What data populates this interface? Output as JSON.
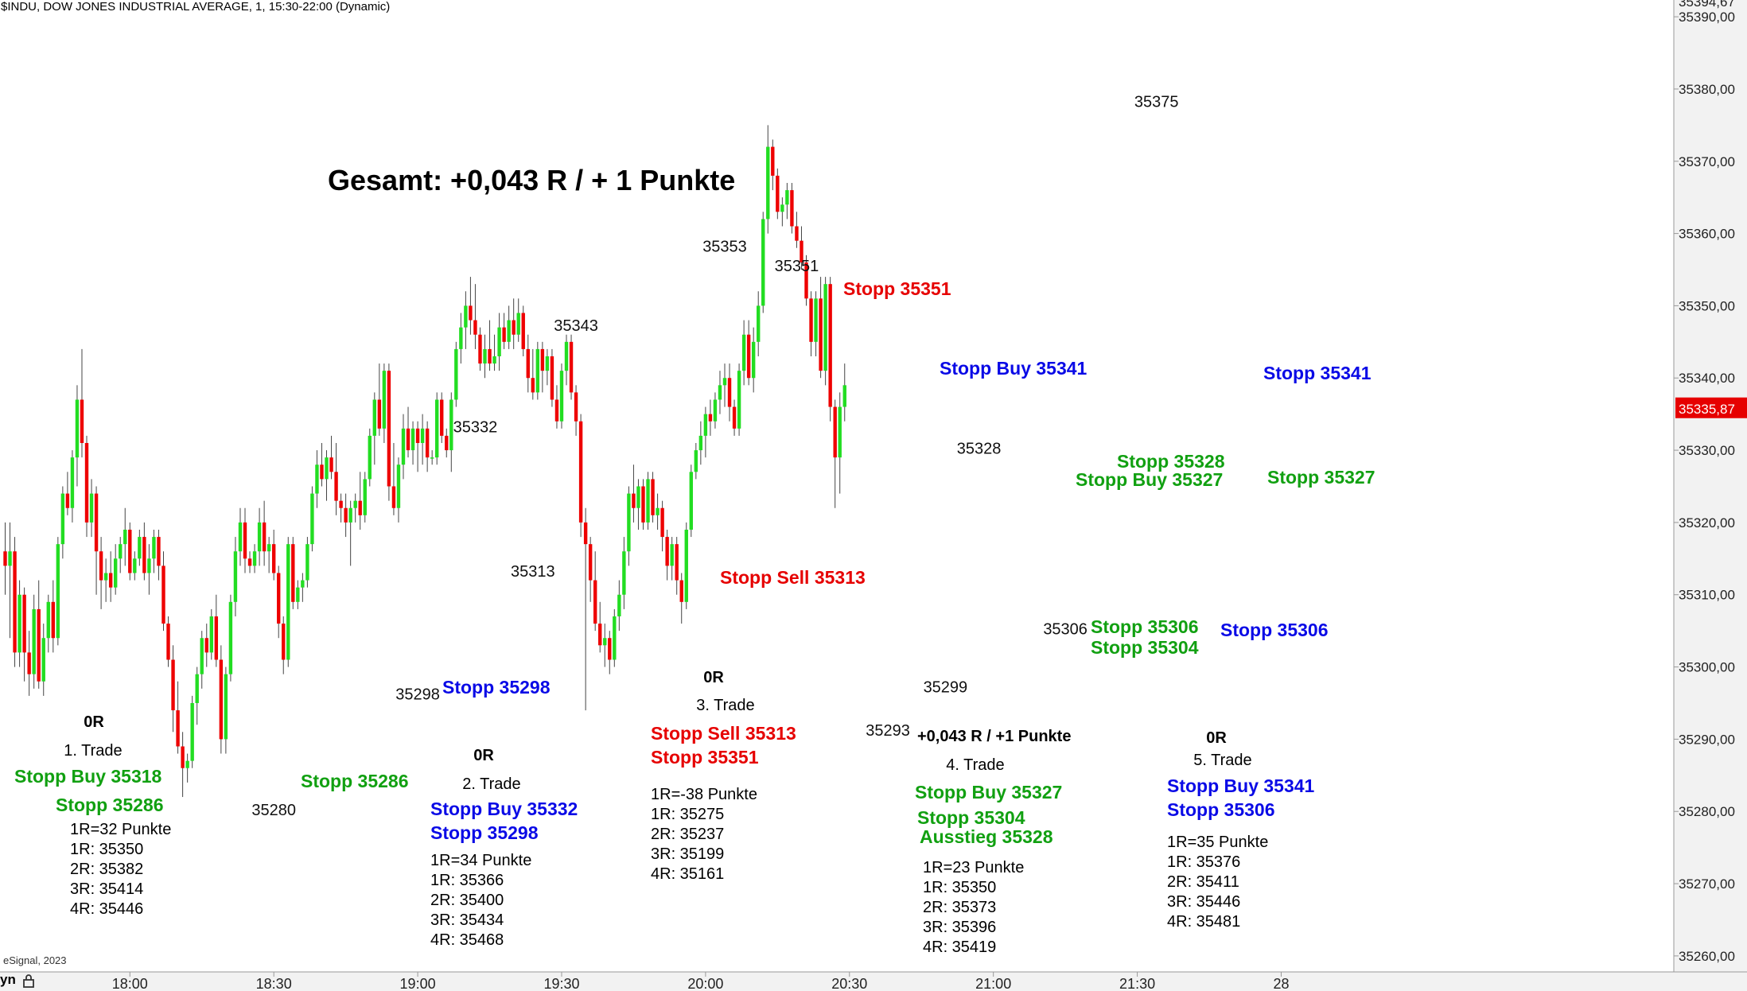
{
  "header": {
    "title": "$INDU, DOW JONES INDUSTRIAL AVERAGE, 1, 15:30-22:00 (Dynamic)"
  },
  "footer": {
    "credit": "eSignal, 2023",
    "mode_label": "yn"
  },
  "icons": {
    "lock": "lock-icon"
  },
  "colors": {
    "up": "#22dd22",
    "down": "#ee0000",
    "wick": "#444444",
    "green_label": "#11a011",
    "blue_label": "#0a0ae6",
    "red_label": "#e60000",
    "price_tag": "#e60000",
    "axis_bg": "#f2f2f2"
  },
  "chart_data": {
    "type": "candlestick",
    "title": "Gesamt: +0,043 R / + 1 Punkte",
    "ylim": [
      35256,
      35396
    ],
    "y_ticks": [
      35260,
      35270,
      35280,
      35290,
      35300,
      35310,
      35320,
      35330,
      35340,
      35350,
      35360,
      35370,
      35380,
      35390
    ],
    "y_tick_labels": [
      "35260,00",
      "35270,00",
      "35280,00",
      "35290,00",
      "35300,00",
      "35310,00",
      "35320,00",
      "35330,00",
      "35340,00",
      "35350,00",
      "35360,00",
      "35370,00",
      "35380,00",
      "35390,00"
    ],
    "y_top_partial_label": "35394,67",
    "current_price": 35335.87,
    "current_price_label": "35335,87",
    "x_ticks": [
      {
        "label": "18:00",
        "bar": 26
      },
      {
        "label": "18:30",
        "bar": 56
      },
      {
        "label": "19:00",
        "bar": 86
      },
      {
        "label": "19:30",
        "bar": 116
      },
      {
        "label": "20:00",
        "bar": 146
      },
      {
        "label": "20:30",
        "bar": 176
      },
      {
        "label": "21:00",
        "bar": 206
      },
      {
        "label": "21:30",
        "bar": 236
      },
      {
        "label": "28",
        "bar": 266
      }
    ],
    "ohlc": [
      [
        35316,
        35320,
        35310,
        35314
      ],
      [
        35314,
        35320,
        35304,
        35316
      ],
      [
        35316,
        35318,
        35300,
        35302
      ],
      [
        35302,
        35312,
        35300,
        35310
      ],
      [
        35310,
        35311,
        35298,
        35302
      ],
      [
        35302,
        35305,
        35296,
        35299
      ],
      [
        35299,
        35310,
        35297,
        35308
      ],
      [
        35308,
        35312,
        35297,
        35298
      ],
      [
        35298,
        35306,
        35296,
        35304
      ],
      [
        35304,
        35310,
        35302,
        35309
      ],
      [
        35309,
        35312,
        35302,
        35304
      ],
      [
        35304,
        35318,
        35303,
        35317
      ],
      [
        35317,
        35325,
        35315,
        35324
      ],
      [
        35324,
        35327,
        35321,
        35322
      ],
      [
        35322,
        35330,
        35320,
        35329
      ],
      [
        35329,
        35339,
        35325,
        35337
      ],
      [
        35337,
        35344,
        35329,
        35331
      ],
      [
        35331,
        35332,
        35318,
        35320
      ],
      [
        35320,
        35326,
        35318,
        35324
      ],
      [
        35324,
        35325,
        35310,
        35316
      ],
      [
        35316,
        35318,
        35308,
        35312
      ],
      [
        35312,
        35315,
        35309,
        35313
      ],
      [
        35313,
        35316,
        35309,
        35311
      ],
      [
        35311,
        35317,
        35310,
        35315
      ],
      [
        35315,
        35318,
        35313,
        35317
      ],
      [
        35317,
        35322,
        35314,
        35319
      ],
      [
        35319,
        35320,
        35312,
        35313
      ],
      [
        35313,
        35316,
        35312,
        35315
      ],
      [
        35315,
        35319,
        35314,
        35318
      ],
      [
        35318,
        35320,
        35312,
        35313
      ],
      [
        35313,
        35317,
        35310,
        35315
      ],
      [
        35315,
        35319,
        35313,
        35318
      ],
      [
        35318,
        35319,
        35312,
        35314
      ],
      [
        35314,
        35316,
        35305,
        35306
      ],
      [
        35306,
        35307,
        35300,
        35301
      ],
      [
        35301,
        35303,
        35291,
        35294
      ],
      [
        35294,
        35298,
        35288,
        35289
      ],
      [
        35289,
        35291,
        35282,
        35286
      ],
      [
        35286,
        35288,
        35284,
        35287
      ],
      [
        35287,
        35296,
        35286,
        35295
      ],
      [
        35295,
        35300,
        35292,
        35299
      ],
      [
        35299,
        35305,
        35297,
        35304
      ],
      [
        35304,
        35306,
        35300,
        35302
      ],
      [
        35302,
        35308,
        35301,
        35307
      ],
      [
        35307,
        35310,
        35300,
        35301
      ],
      [
        35301,
        35303,
        35288,
        35290
      ],
      [
        35290,
        35300,
        35288,
        35299
      ],
      [
        35299,
        35310,
        35298,
        35309
      ],
      [
        35309,
        35318,
        35307,
        35316
      ],
      [
        35316,
        35322,
        35314,
        35320
      ],
      [
        35320,
        35322,
        35313,
        35315
      ],
      [
        35315,
        35316,
        35313,
        35314
      ],
      [
        35314,
        35317,
        35313,
        35316
      ],
      [
        35316,
        35322,
        35314,
        35320
      ],
      [
        35320,
        35323,
        35314,
        35316
      ],
      [
        35316,
        35318,
        35313,
        35317
      ],
      [
        35317,
        35319,
        35312,
        35313
      ],
      [
        35313,
        35314,
        35304,
        35306
      ],
      [
        35306,
        35307,
        35299,
        35301
      ],
      [
        35301,
        35318,
        35300,
        35317
      ],
      [
        35317,
        35318,
        35308,
        35309
      ],
      [
        35309,
        35312,
        35308,
        35311
      ],
      [
        35311,
        35313,
        35309,
        35312
      ],
      [
        35312,
        35318,
        35311,
        35317
      ],
      [
        35317,
        35325,
        35316,
        35324
      ],
      [
        35324,
        35330,
        35322,
        35328
      ],
      [
        35328,
        35331,
        35325,
        35326
      ],
      [
        35326,
        35330,
        35323,
        35329
      ],
      [
        35329,
        35332,
        35326,
        35327
      ],
      [
        35327,
        35331,
        35321,
        35323
      ],
      [
        35323,
        35324,
        35320,
        35322
      ],
      [
        35322,
        35324,
        35318,
        35320
      ],
      [
        35320,
        35323,
        35314,
        35322
      ],
      [
        35322,
        35324,
        35320,
        35323
      ],
      [
        35323,
        35327,
        35319,
        35321
      ],
      [
        35321,
        35327,
        35320,
        35326
      ],
      [
        35326,
        35333,
        35325,
        35332
      ],
      [
        35332,
        35338,
        35328,
        35337
      ],
      [
        35337,
        35342,
        35332,
        35333
      ],
      [
        35333,
        35342,
        35331,
        35341
      ],
      [
        35341,
        35342,
        35323,
        35325
      ],
      [
        35325,
        35331,
        35321,
        35322
      ],
      [
        35322,
        35329,
        35320,
        35328
      ],
      [
        35328,
        35335,
        35326,
        35333
      ],
      [
        35333,
        35336,
        35329,
        35330
      ],
      [
        35330,
        35334,
        35328,
        35333
      ],
      [
        35333,
        35334,
        35327,
        35331
      ],
      [
        35331,
        35335,
        35328,
        35333
      ],
      [
        35333,
        35334,
        35327,
        35329
      ],
      [
        35329,
        35330,
        35328,
        35329
      ],
      [
        35329,
        35338,
        35328,
        35337
      ],
      [
        35337,
        35338,
        35331,
        35332
      ],
      [
        35332,
        35333,
        35329,
        35330
      ],
      [
        35330,
        35338,
        35327,
        35337
      ],
      [
        35337,
        35345,
        35336,
        35344
      ],
      [
        35344,
        35349,
        35342,
        35347
      ],
      [
        35347,
        35352,
        35344,
        35350
      ],
      [
        35350,
        35354,
        35346,
        35348
      ],
      [
        35348,
        35353,
        35344,
        35346
      ],
      [
        35346,
        35347,
        35341,
        35342
      ],
      [
        35342,
        35346,
        35340,
        35344
      ],
      [
        35344,
        35348,
        35341,
        35342
      ],
      [
        35342,
        35346,
        35341,
        35343
      ],
      [
        35343,
        35349,
        35341,
        35347
      ],
      [
        35347,
        35349,
        35344,
        35345
      ],
      [
        35345,
        35350,
        35344,
        35348
      ],
      [
        35348,
        35351,
        35344,
        35346
      ],
      [
        35346,
        35351,
        35345,
        35349
      ],
      [
        35349,
        35350,
        35343,
        35344
      ],
      [
        35344,
        35346,
        35338,
        35340
      ],
      [
        35340,
        35344,
        35337,
        35338
      ],
      [
        35338,
        35345,
        35337,
        35344
      ],
      [
        35344,
        35345,
        35338,
        35341
      ],
      [
        35341,
        35344,
        35339,
        35343
      ],
      [
        35343,
        35344,
        35336,
        35337
      ],
      [
        35337,
        35339,
        35333,
        35334
      ],
      [
        35334,
        35342,
        35333,
        35341
      ],
      [
        35341,
        35346,
        35339,
        35345
      ],
      [
        35345,
        35346,
        35337,
        35338
      ],
      [
        35338,
        35339,
        35332,
        35334
      ],
      [
        35334,
        35335,
        35318,
        35320
      ],
      [
        35320,
        35322,
        35294,
        35317
      ],
      [
        35317,
        35318,
        35309,
        35312
      ],
      [
        35312,
        35316,
        35305,
        35306
      ],
      [
        35306,
        35309,
        35302,
        35303
      ],
      [
        35303,
        35306,
        35300,
        35304
      ],
      [
        35304,
        35305,
        35299,
        35301
      ],
      [
        35301,
        35308,
        35300,
        35307
      ],
      [
        35307,
        35312,
        35305,
        35310
      ],
      [
        35310,
        35318,
        35308,
        35316
      ],
      [
        35316,
        35325,
        35314,
        35324
      ],
      [
        35324,
        35328,
        35320,
        35322
      ],
      [
        35322,
        35326,
        35319,
        35325
      ],
      [
        35325,
        35326,
        35319,
        35320
      ],
      [
        35320,
        35327,
        35319,
        35326
      ],
      [
        35326,
        35327,
        35320,
        35321
      ],
      [
        35321,
        35324,
        35319,
        35322
      ],
      [
        35322,
        35323,
        35316,
        35318
      ],
      [
        35318,
        35319,
        35312,
        35314
      ],
      [
        35314,
        35318,
        35312,
        35317
      ],
      [
        35317,
        35318,
        35310,
        35312
      ],
      [
        35312,
        35313,
        35306,
        35309
      ],
      [
        35309,
        35320,
        35308,
        35319
      ],
      [
        35319,
        35328,
        35318,
        35327
      ],
      [
        35327,
        35331,
        35326,
        35330
      ],
      [
        35330,
        35334,
        35328,
        35332
      ],
      [
        35332,
        35336,
        35329,
        35335
      ],
      [
        35335,
        35337,
        35332,
        35334
      ],
      [
        35334,
        35338,
        35333,
        35337
      ],
      [
        35337,
        35341,
        35335,
        35339
      ],
      [
        35339,
        35342,
        35336,
        35340
      ],
      [
        35340,
        35342,
        35334,
        35336
      ],
      [
        35336,
        35337,
        35332,
        35333
      ],
      [
        35333,
        35342,
        35332,
        35341
      ],
      [
        35341,
        35348,
        35339,
        35346
      ],
      [
        35346,
        35348,
        35339,
        35340
      ],
      [
        35340,
        35347,
        35338,
        35345
      ],
      [
        35345,
        35352,
        35343,
        35350
      ],
      [
        35350,
        35363,
        35349,
        35362
      ],
      [
        35362,
        35375,
        35360,
        35372
      ],
      [
        35372,
        35373,
        35366,
        35368
      ],
      [
        35368,
        35369,
        35362,
        35363
      ],
      [
        35363,
        35365,
        35361,
        35364
      ],
      [
        35364,
        35367,
        35362,
        35366
      ],
      [
        35366,
        35367,
        35360,
        35361
      ],
      [
        35361,
        35363,
        35358,
        35359
      ],
      [
        35359,
        35361,
        35355,
        35356
      ],
      [
        35356,
        35357,
        35350,
        35351
      ],
      [
        35351,
        35352,
        35343,
        35345
      ],
      [
        35345,
        35352,
        35343,
        35351
      ],
      [
        35351,
        35354,
        35340,
        35341
      ],
      [
        35341,
        35354,
        35339,
        35353
      ],
      [
        35353,
        35354,
        35334,
        35336
      ],
      [
        35336,
        35337,
        35322,
        35329
      ],
      [
        35329,
        35338,
        35324,
        35336
      ],
      [
        35336,
        35342,
        35334,
        35339
      ]
    ],
    "price_labels": [
      {
        "text": "35280",
        "bar": 56,
        "price": 35279.5
      },
      {
        "text": "35298",
        "bar": 86,
        "price": 35295.5
      },
      {
        "text": "35313",
        "bar": 110,
        "price": 35312.5
      },
      {
        "text": "35332",
        "bar": 98,
        "price": 35332.5
      },
      {
        "text": "35343",
        "bar": 119,
        "price": 35346.5
      },
      {
        "text": "35353",
        "bar": 150,
        "price": 35357.5
      },
      {
        "text": "35351",
        "bar": 165,
        "price": 35354.8
      },
      {
        "text": "35293",
        "bar": 184,
        "price": 35290.5
      },
      {
        "text": "35299",
        "bar": 196,
        "price": 35296.5
      },
      {
        "text": "35328",
        "bar": 203,
        "price": 35329.5
      },
      {
        "text": "35306",
        "bar": 221,
        "price": 35304.5
      },
      {
        "text": "35375",
        "bar": 240,
        "price": 35377.5
      }
    ],
    "annotations": {
      "total": "Gesamt: +0,043 R / + 1 Punkte",
      "trade1": {
        "result": "0R",
        "name": "1. Trade",
        "entry": "Stopp Buy 35318",
        "stop": "Stopp 35286",
        "lines": [
          "1R=32 Punkte",
          "1R: 35350",
          "2R: 35382",
          "3R: 35414",
          "4R: 35446"
        ],
        "chart_stop": "Stopp 35286"
      },
      "trade2": {
        "result": "0R",
        "name": "2. Trade",
        "entry": "Stopp Buy 35332",
        "stop": "Stopp 35298",
        "lines": [
          "1R=34 Punkte",
          "1R: 35366",
          "2R: 35400",
          "3R: 35434",
          "4R: 35468"
        ],
        "chart_stop": "Stopp 35298"
      },
      "trade3": {
        "result": "0R",
        "name": "3. Trade",
        "entry": "Stopp Sell 35313",
        "stop": "Stopp 35351",
        "lines": [
          "1R=-38 Punkte",
          "1R: 35275",
          "2R: 35237",
          "3R: 35199",
          "4R: 35161"
        ],
        "chart_stop": "Stopp 35351",
        "chart_entry": "Stopp Sell 35313"
      },
      "trade4": {
        "result": "+0,043 R / +1 Punkte",
        "name": "4. Trade",
        "entry": "Stopp Buy 35327",
        "stop": "Stopp 35304",
        "exit": "Ausstieg 35328",
        "lines": [
          "1R=23 Punkte",
          "1R: 35350",
          "2R: 35373",
          "3R: 35396",
          "4R: 35419"
        ],
        "chart_entry_a": "Stopp 35328",
        "chart_entry_b": "Stopp Buy 35327",
        "chart_stop_a": "Stopp 35306",
        "chart_stop_b": "Stopp 35304"
      },
      "trade5": {
        "result": "0R",
        "name": "5. Trade",
        "entry": "Stopp Buy 35341",
        "stop": "Stopp 35306",
        "lines": [
          "1R=35 Punkte",
          "1R: 35376",
          "2R: 35411",
          "3R: 35446",
          "4R: 35481"
        ],
        "chart_entry": "Stopp Buy 35341",
        "chart_stop": "Stopp 35306",
        "chart_stop_right": "Stopp 35341",
        "chart_stop_right_green": "Stopp 35327"
      }
    }
  }
}
